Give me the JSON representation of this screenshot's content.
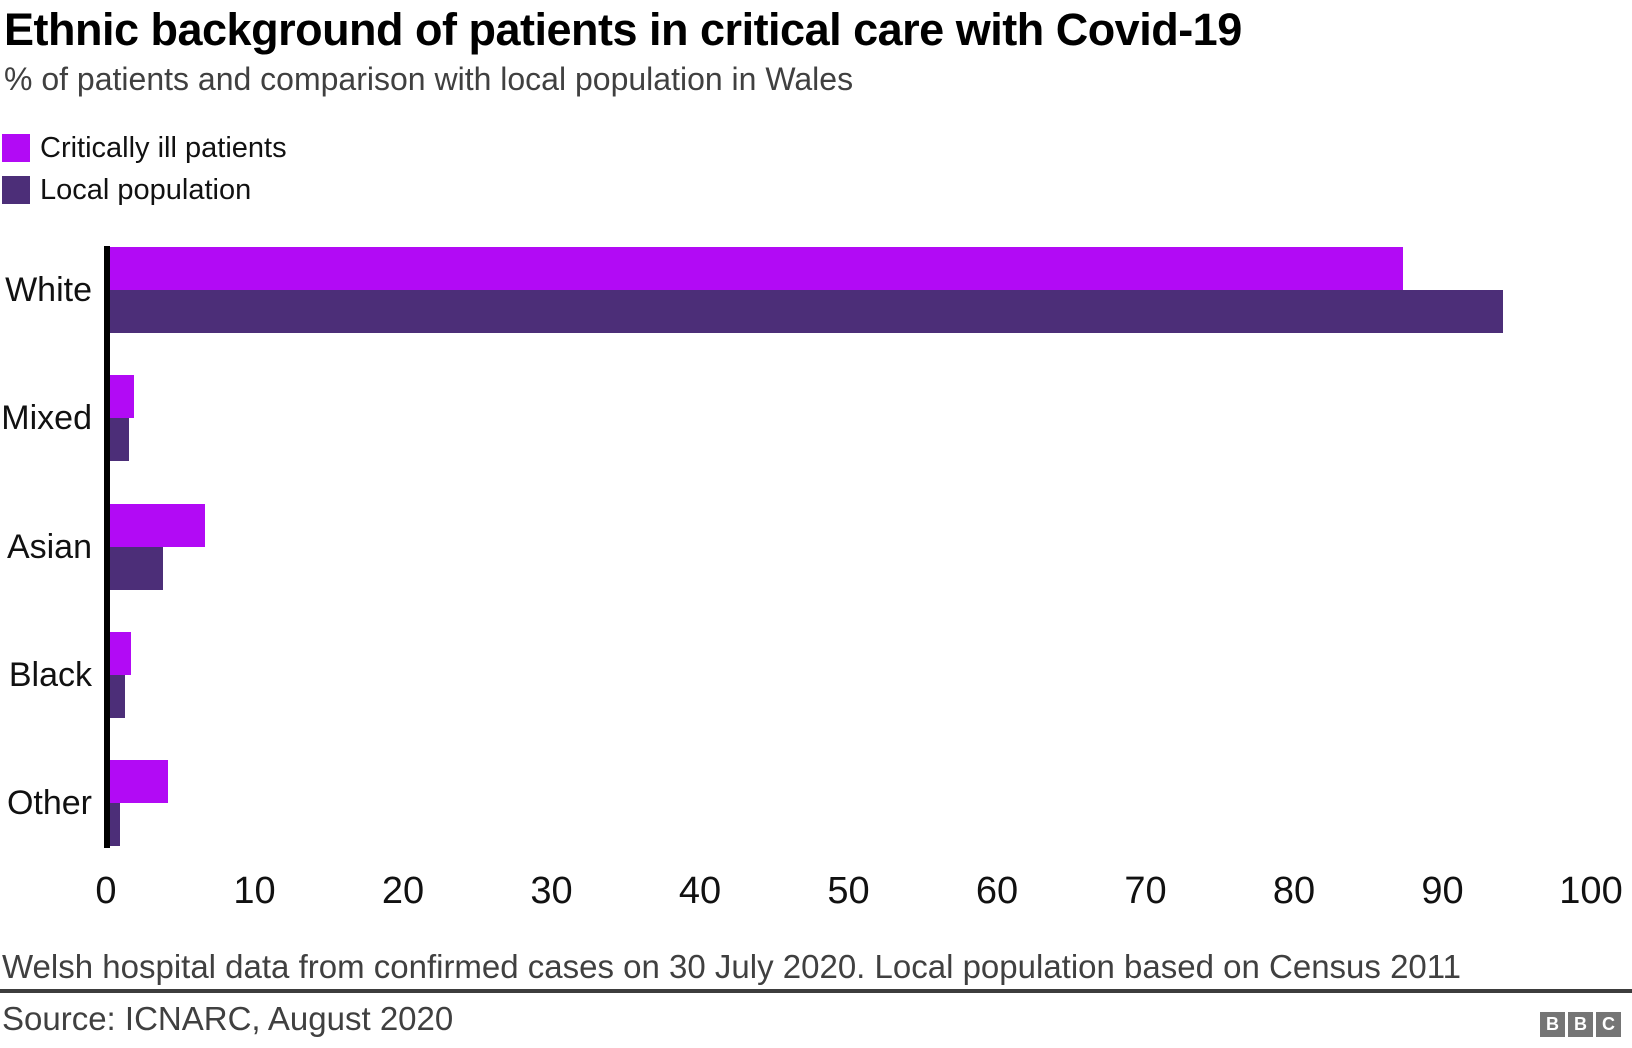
{
  "header": {
    "title": "Ethnic background of patients in critical care with Covid-19",
    "subtitle": "% of patients and comparison with local population in Wales"
  },
  "chart_data": {
    "type": "bar",
    "orientation": "horizontal",
    "title": "Ethnic background of patients in critical care with Covid-19",
    "subtitle": "% of patients and comparison with local population in Wales",
    "categories": [
      "White",
      "Mixed",
      "Asian",
      "Black",
      "Other"
    ],
    "series": [
      {
        "name": "Critically ill patients",
        "color": "#b20af5",
        "values": [
          87.3,
          1.8,
          6.6,
          1.6,
          4.1
        ]
      },
      {
        "name": "Local population",
        "color": "#4c2e78",
        "values": [
          94.0,
          1.5,
          3.8,
          1.2,
          0.9
        ]
      }
    ],
    "xlabel": "",
    "ylabel": "",
    "xlim": [
      0,
      100
    ],
    "ticks": [
      0,
      10,
      20,
      30,
      40,
      50,
      60,
      70,
      80,
      90,
      100
    ],
    "grid": false,
    "legend_position": "top-left",
    "axis_color": "#000000"
  },
  "footer": {
    "note": "Welsh hospital data from confirmed cases on 30 July 2020. Local population based on Census 2011",
    "source": "Source: ICNARC, August 2020",
    "logo_letters": [
      "B",
      "B",
      "C"
    ]
  }
}
